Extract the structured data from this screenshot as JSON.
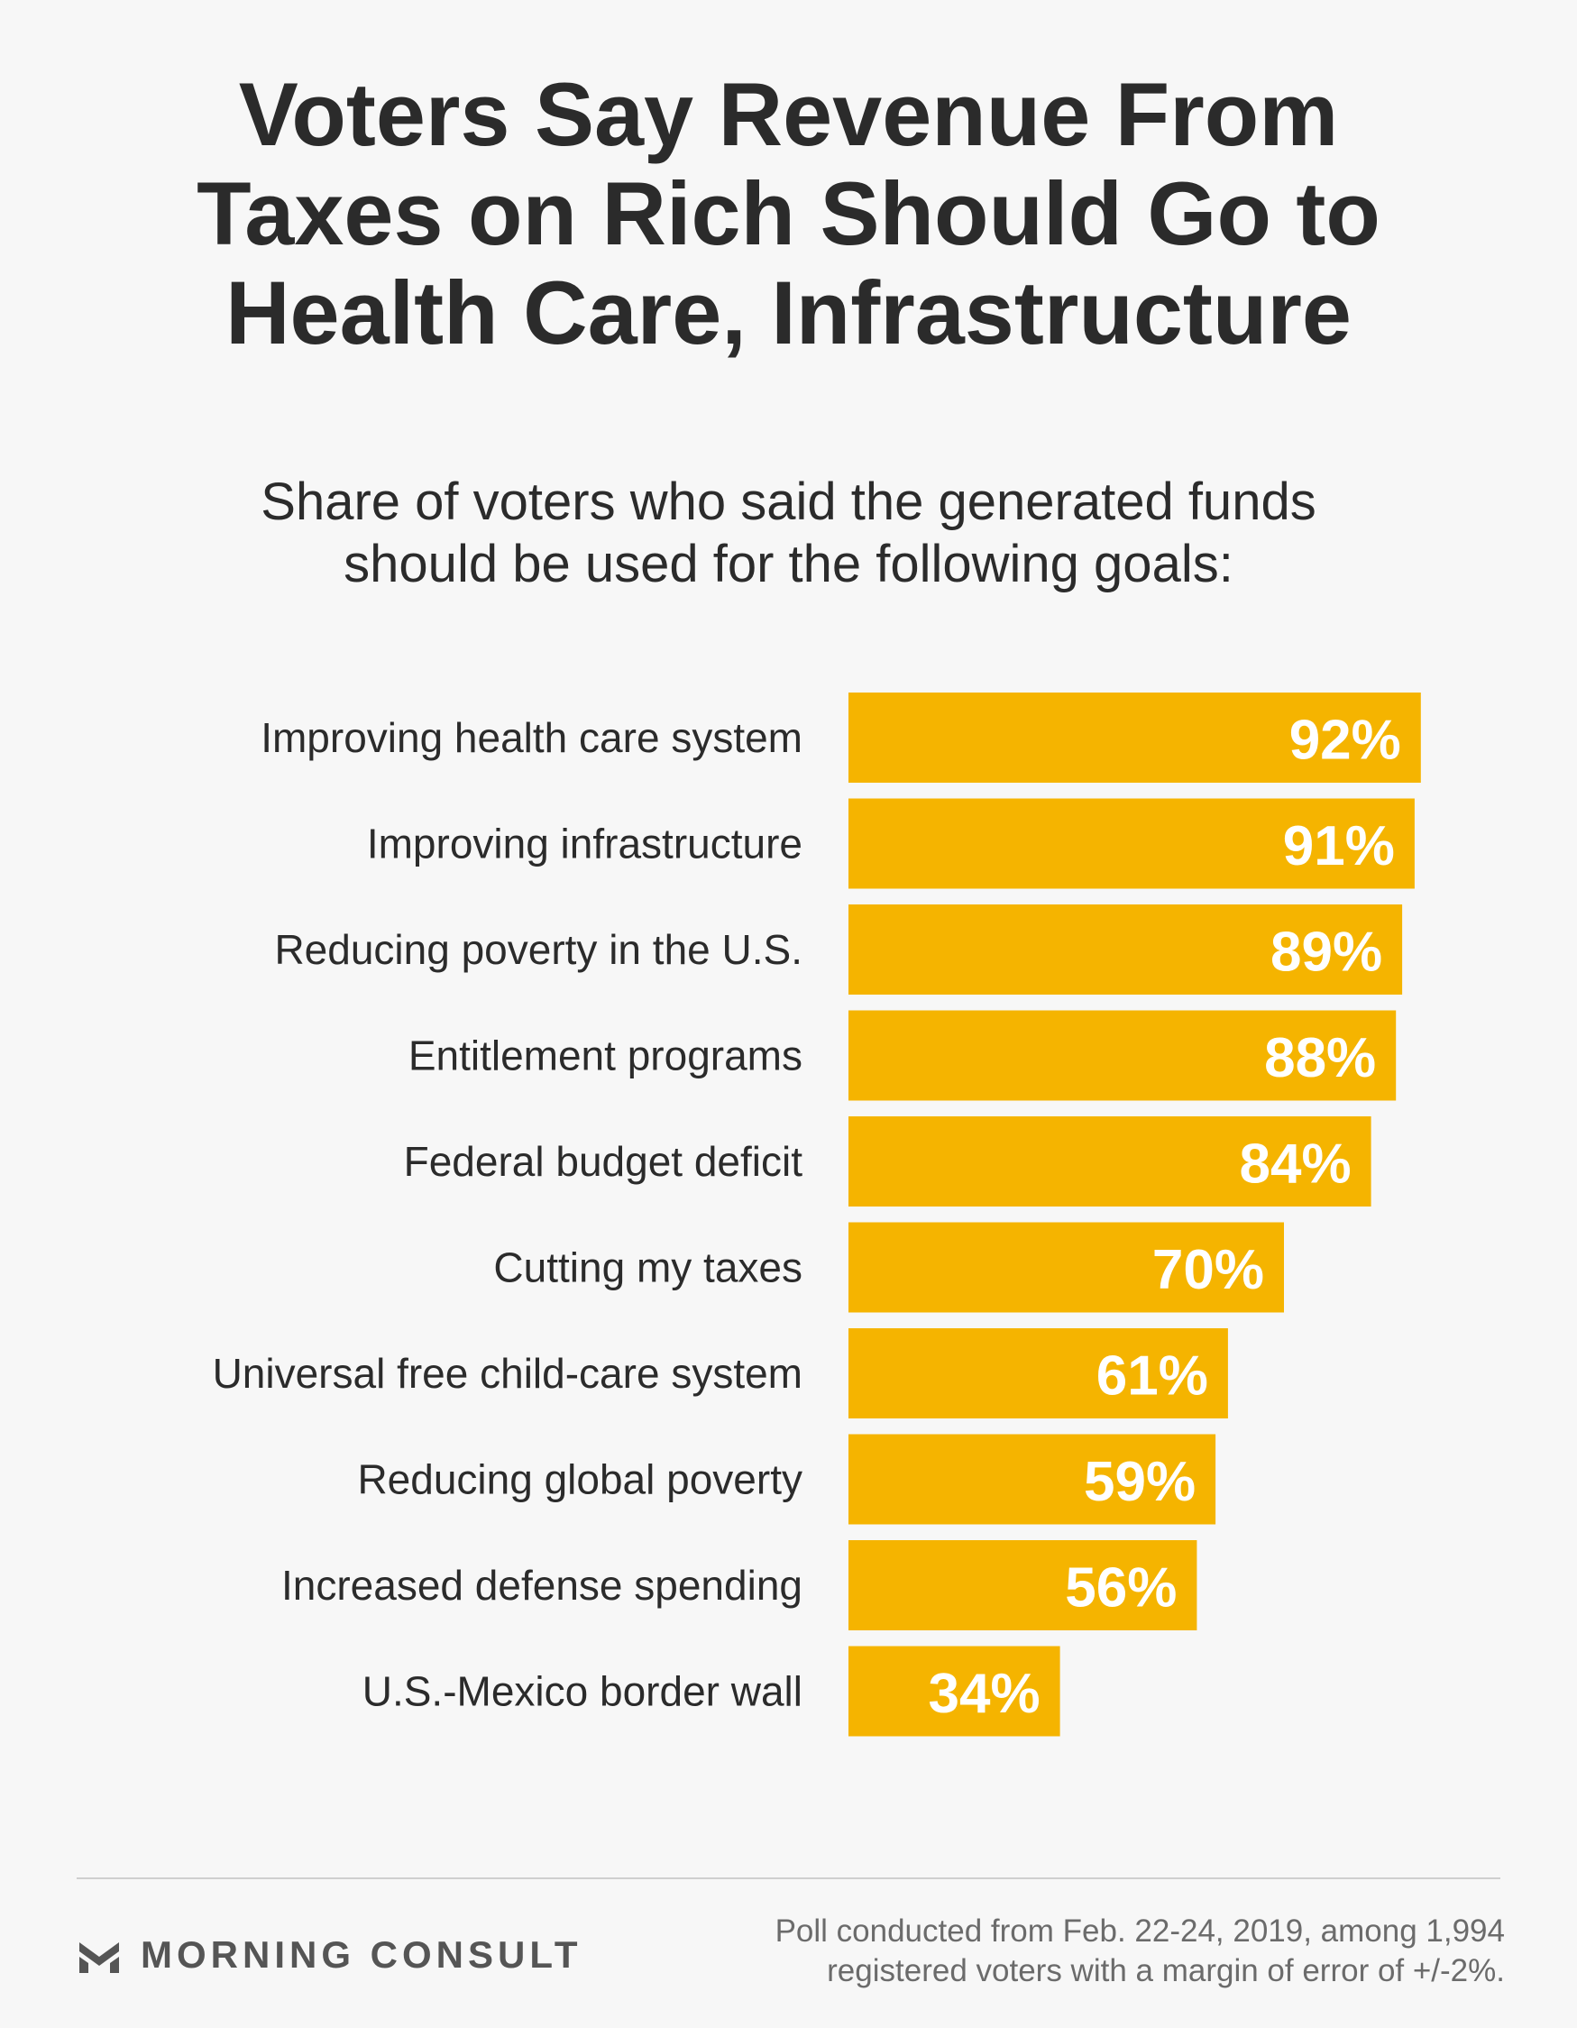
{
  "header": {
    "title_lines": [
      "Voters Say Revenue From",
      "Taxes on Rich Should Go to",
      "Health Care, Infrastructure"
    ],
    "subtitle_lines": [
      "Share of voters who said the generated funds",
      "should be used for the following goals:"
    ]
  },
  "chart_data": {
    "type": "bar",
    "orientation": "horizontal",
    "title": "Voters Say Revenue From Taxes on Rich Should Go to Health Care, Infrastructure",
    "subtitle": "Share of voters who said the generated funds should be used for the following goals:",
    "categories": [
      "Improving health care system",
      "Improving infrastructure",
      "Reducing poverty in the U.S.",
      "Entitlement programs",
      "Federal budget deficit",
      "Cutting my taxes",
      "Universal free child-care system",
      "Reducing global poverty",
      "Increased defense spending",
      "U.S.-Mexico border wall"
    ],
    "values": [
      92,
      91,
      89,
      88,
      84,
      70,
      61,
      59,
      56,
      34
    ],
    "value_labels": [
      "92%",
      "91%",
      "89%",
      "88%",
      "84%",
      "70%",
      "61%",
      "59%",
      "56%",
      "34%"
    ],
    "unit": "%",
    "xlim": [
      0,
      100
    ],
    "xlabel": "",
    "ylabel": "",
    "grid": false,
    "legend": "none",
    "colors": {
      "bar": "#f5b400",
      "value_label": "#ffffff",
      "category_label": "#2b2b2b"
    }
  },
  "footer": {
    "brand": "MORNING CONSULT",
    "brand_icon": "morning-consult-logo-icon",
    "note_lines": [
      "Poll conducted from Feb. 22-24, 2019, among 1,994",
      "registered voters with a margin of error of +/-2%."
    ]
  }
}
